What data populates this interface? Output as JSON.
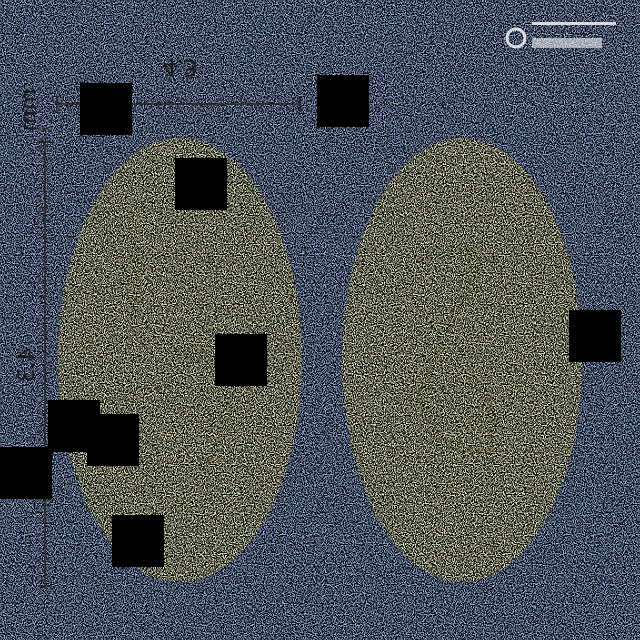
{
  "labels": {
    "width": "4.3",
    "unit": "mm",
    "height": "4.3"
  }
}
